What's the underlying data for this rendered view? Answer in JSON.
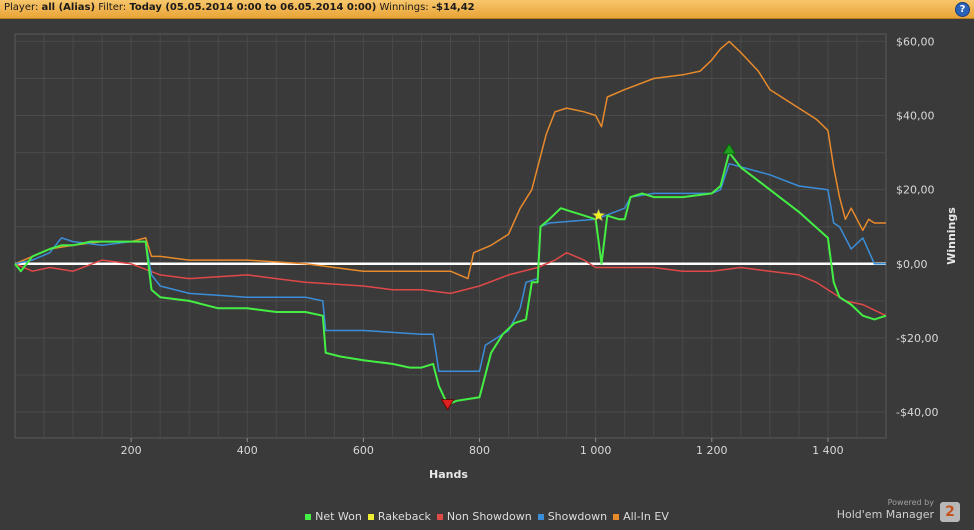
{
  "header": {
    "player_label": "Player:",
    "player_value": "all (Alias)",
    "filter_label": "Filter:",
    "filter_value": "Today (05.05.2014 0:00 to 06.05.2014 0:00)",
    "winnings_label": "Winnings:",
    "winnings_value": "-$14,42",
    "help_icon": "?"
  },
  "brand": {
    "powered_by": "Powered by",
    "name": "Hold'em Manager",
    "logo_text": "2"
  },
  "colors": {
    "background": "#3a3a3a",
    "header": "#f0b54e",
    "net_won": "#44ee44",
    "rakeback": "#eeee33",
    "non_showdown": "#e04848",
    "showdown": "#3a8ed8",
    "all_in_ev": "#e88a2c",
    "zero_line": "#ffffff"
  },
  "chart_data": {
    "type": "line",
    "xlabel": "Hands",
    "ylabel": "Winnings",
    "xlim": [
      0,
      1500
    ],
    "ylim": [
      -47,
      62
    ],
    "x_ticks": [
      200,
      400,
      600,
      800,
      1000,
      1200,
      1400
    ],
    "x_tick_labels": [
      "200",
      "400",
      "600",
      "800",
      "1 000",
      "1 200",
      "1 400"
    ],
    "y_ticks": [
      -40,
      -20,
      0,
      20,
      40,
      60
    ],
    "y_tick_labels": [
      "-$40,00",
      "-$20,00",
      "$0,00",
      "$20,00",
      "$40,00",
      "$60,00"
    ],
    "grid": true,
    "legend_placement": "bottom",
    "series": [
      {
        "name": "Net Won",
        "color": "#44ee44",
        "points": [
          [
            0,
            0
          ],
          [
            10,
            -2
          ],
          [
            30,
            2
          ],
          [
            60,
            4
          ],
          [
            80,
            5
          ],
          [
            100,
            5
          ],
          [
            130,
            6
          ],
          [
            150,
            6
          ],
          [
            200,
            6
          ],
          [
            225,
            6
          ],
          [
            235,
            -7
          ],
          [
            250,
            -9
          ],
          [
            300,
            -10
          ],
          [
            350,
            -12
          ],
          [
            400,
            -12
          ],
          [
            450,
            -13
          ],
          [
            500,
            -13
          ],
          [
            530,
            -14
          ],
          [
            535,
            -24
          ],
          [
            560,
            -25
          ],
          [
            600,
            -26
          ],
          [
            650,
            -27
          ],
          [
            680,
            -28
          ],
          [
            700,
            -28
          ],
          [
            720,
            -27
          ],
          [
            730,
            -33
          ],
          [
            745,
            -38
          ],
          [
            760,
            -37
          ],
          [
            800,
            -36
          ],
          [
            820,
            -24
          ],
          [
            840,
            -19
          ],
          [
            860,
            -16
          ],
          [
            880,
            -15
          ],
          [
            890,
            -5
          ],
          [
            900,
            -5
          ],
          [
            905,
            10
          ],
          [
            920,
            12
          ],
          [
            940,
            15
          ],
          [
            960,
            14
          ],
          [
            980,
            13
          ],
          [
            1000,
            12
          ],
          [
            1010,
            0
          ],
          [
            1020,
            13
          ],
          [
            1040,
            12
          ],
          [
            1050,
            12
          ],
          [
            1060,
            18
          ],
          [
            1080,
            19
          ],
          [
            1100,
            18
          ],
          [
            1150,
            18
          ],
          [
            1200,
            19
          ],
          [
            1215,
            21
          ],
          [
            1230,
            30
          ],
          [
            1250,
            26
          ],
          [
            1300,
            20
          ],
          [
            1350,
            14
          ],
          [
            1400,
            7
          ],
          [
            1410,
            -5
          ],
          [
            1420,
            -9
          ],
          [
            1440,
            -11
          ],
          [
            1460,
            -14
          ],
          [
            1480,
            -15
          ],
          [
            1500,
            -14
          ]
        ]
      },
      {
        "name": "Rakeback",
        "color": "#eeee33",
        "points": [
          [
            0,
            0
          ],
          [
            1500,
            0
          ]
        ]
      },
      {
        "name": "Non Showdown",
        "color": "#e04848",
        "points": [
          [
            0,
            0
          ],
          [
            30,
            -2
          ],
          [
            60,
            -1
          ],
          [
            100,
            -2
          ],
          [
            150,
            1
          ],
          [
            200,
            0
          ],
          [
            250,
            -3
          ],
          [
            300,
            -4
          ],
          [
            400,
            -3
          ],
          [
            450,
            -4
          ],
          [
            500,
            -5
          ],
          [
            600,
            -6
          ],
          [
            650,
            -7
          ],
          [
            700,
            -7
          ],
          [
            750,
            -8
          ],
          [
            800,
            -6
          ],
          [
            850,
            -3
          ],
          [
            900,
            -1
          ],
          [
            930,
            1
          ],
          [
            950,
            3
          ],
          [
            980,
            1
          ],
          [
            1000,
            -1
          ],
          [
            1050,
            -1
          ],
          [
            1100,
            -1
          ],
          [
            1150,
            -2
          ],
          [
            1200,
            -2
          ],
          [
            1250,
            -1
          ],
          [
            1300,
            -2
          ],
          [
            1350,
            -3
          ],
          [
            1380,
            -5
          ],
          [
            1400,
            -7
          ],
          [
            1430,
            -10
          ],
          [
            1460,
            -11
          ],
          [
            1500,
            -14
          ]
        ]
      },
      {
        "name": "Showdown",
        "color": "#3a8ed8",
        "points": [
          [
            0,
            0
          ],
          [
            30,
            1
          ],
          [
            60,
            3
          ],
          [
            80,
            7
          ],
          [
            100,
            6
          ],
          [
            150,
            5
          ],
          [
            200,
            6
          ],
          [
            225,
            6
          ],
          [
            235,
            -3
          ],
          [
            250,
            -6
          ],
          [
            300,
            -8
          ],
          [
            400,
            -9
          ],
          [
            500,
            -9
          ],
          [
            530,
            -10
          ],
          [
            535,
            -18
          ],
          [
            600,
            -18
          ],
          [
            700,
            -19
          ],
          [
            720,
            -19
          ],
          [
            730,
            -29
          ],
          [
            800,
            -29
          ],
          [
            810,
            -22
          ],
          [
            850,
            -18
          ],
          [
            870,
            -12
          ],
          [
            880,
            -5
          ],
          [
            900,
            -4
          ],
          [
            905,
            10
          ],
          [
            920,
            11
          ],
          [
            1000,
            12
          ],
          [
            1050,
            15
          ],
          [
            1060,
            18
          ],
          [
            1100,
            19
          ],
          [
            1200,
            19
          ],
          [
            1215,
            20
          ],
          [
            1230,
            27
          ],
          [
            1300,
            24
          ],
          [
            1350,
            21
          ],
          [
            1400,
            20
          ],
          [
            1410,
            11
          ],
          [
            1420,
            10
          ],
          [
            1440,
            4
          ],
          [
            1460,
            7
          ],
          [
            1480,
            0
          ],
          [
            1500,
            0
          ]
        ]
      },
      {
        "name": "All-In EV",
        "color": "#e88a2c",
        "points": [
          [
            0,
            0
          ],
          [
            30,
            2
          ],
          [
            60,
            4
          ],
          [
            100,
            5
          ],
          [
            150,
            6
          ],
          [
            200,
            6
          ],
          [
            225,
            7
          ],
          [
            235,
            2
          ],
          [
            250,
            2
          ],
          [
            300,
            1
          ],
          [
            400,
            1
          ],
          [
            500,
            0
          ],
          [
            550,
            -1
          ],
          [
            600,
            -2
          ],
          [
            650,
            -2
          ],
          [
            700,
            -2
          ],
          [
            750,
            -2
          ],
          [
            780,
            -4
          ],
          [
            790,
            3
          ],
          [
            820,
            5
          ],
          [
            850,
            8
          ],
          [
            870,
            15
          ],
          [
            890,
            20
          ],
          [
            900,
            26
          ],
          [
            915,
            35
          ],
          [
            930,
            41
          ],
          [
            950,
            42
          ],
          [
            980,
            41
          ],
          [
            1000,
            40
          ],
          [
            1010,
            37
          ],
          [
            1020,
            45
          ],
          [
            1050,
            47
          ],
          [
            1100,
            50
          ],
          [
            1150,
            51
          ],
          [
            1180,
            52
          ],
          [
            1200,
            55
          ],
          [
            1215,
            58
          ],
          [
            1230,
            60
          ],
          [
            1250,
            57
          ],
          [
            1280,
            52
          ],
          [
            1300,
            47
          ],
          [
            1350,
            42
          ],
          [
            1380,
            39
          ],
          [
            1400,
            36
          ],
          [
            1410,
            26
          ],
          [
            1420,
            18
          ],
          [
            1430,
            12
          ],
          [
            1440,
            15
          ],
          [
            1460,
            9
          ],
          [
            1470,
            12
          ],
          [
            1480,
            11
          ],
          [
            1500,
            11
          ]
        ]
      }
    ],
    "markers": [
      {
        "name": "min-marker",
        "shape": "triangle-down",
        "color": "#e02020",
        "x": 745,
        "y": -38
      },
      {
        "name": "rakeback-star-marker",
        "shape": "star",
        "color": "#f0f020",
        "x": 1005,
        "y": 13
      },
      {
        "name": "max-marker",
        "shape": "triangle-up",
        "color": "#20a020",
        "x": 1230,
        "y": 31
      }
    ]
  }
}
